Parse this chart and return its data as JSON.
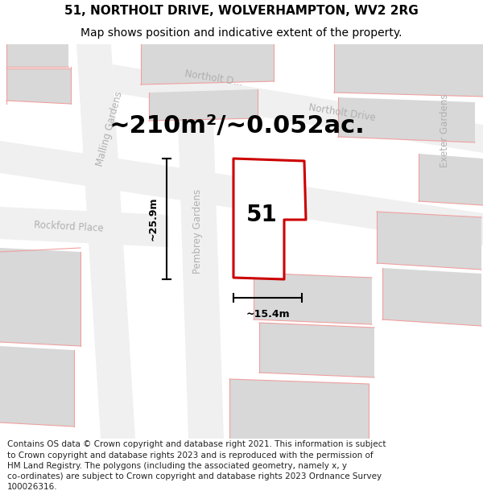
{
  "title_line1": "51, NORTHOLT DRIVE, WOLVERHAMPTON, WV2 2RG",
  "title_line2": "Map shows position and indicative extent of the property.",
  "area_text": "~210m²/~0.052ac.",
  "label_51": "51",
  "dim_height": "~25.9m",
  "dim_width": "~15.4m",
  "footer_wrapped": "Contains OS data © Crown copyright and database right 2021. This information is subject\nto Crown copyright and database rights 2023 and is reproduced with the permission of\nHM Land Registry. The polygons (including the associated geometry, namely x, y\nco-ordinates) are subject to Crown copyright and database rights 2023 Ordnance Survey\n100026316.",
  "map_bg": "#e8e8e8",
  "building_color": "#d8d8d8",
  "property_line_color": "#cc0000",
  "street_label_color": "#b0b0b0",
  "pink": "#f0a0a0",
  "title_font_size": 11,
  "subtitle_font_size": 10,
  "area_font_size": 22,
  "label_font_size": 20,
  "footer_font_size": 7.5,
  "street_font_size": 8.5
}
